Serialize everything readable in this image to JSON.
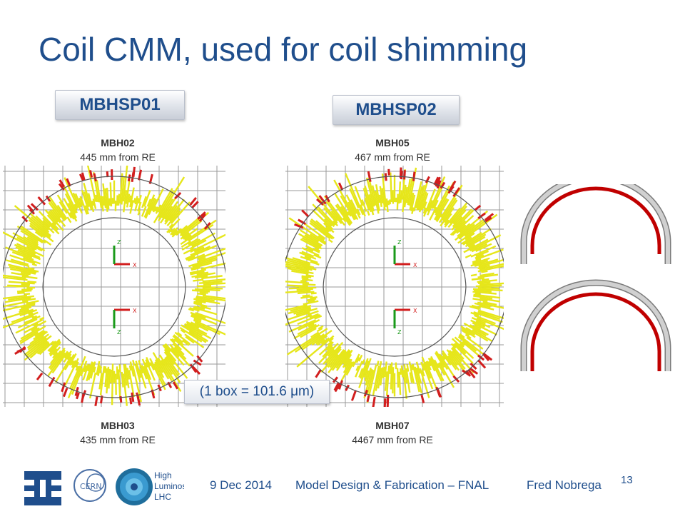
{
  "slide": {
    "title": "Coil CMM, used for coil shimming",
    "left_group": {
      "tag": "MBHSP01",
      "top_magnet": "MBH02",
      "top_distance": "445 mm from RE",
      "bottom_magnet": "MBH03",
      "bottom_distance": "435 mm from RE"
    },
    "right_group": {
      "tag": "MBHSP02",
      "top_magnet": "MBH05",
      "top_distance": "467 mm from RE",
      "bottom_magnet": "MBH07",
      "bottom_distance": "4467 mm from RE"
    },
    "scale_note": "(1 box = 101.6 μm)",
    "axis_labels": {
      "x": "X",
      "z": "Z"
    }
  },
  "footer": {
    "date": "9 Dec 2014",
    "event": "Model Design & Fabrication – FNAL",
    "author": "Fred Nobrega",
    "page": "13",
    "logo_cern": "CERN",
    "logo_hl": [
      "High",
      "Luminosity",
      "LHC"
    ]
  },
  "colors": {
    "title": "#1f4e8c",
    "deviation_yellow": "#e6e61a",
    "deviation_red": "#d21e1e",
    "grid": "#9a9a9a",
    "coil_grey": "#b4b4b4",
    "coil_red": "#c00000"
  }
}
